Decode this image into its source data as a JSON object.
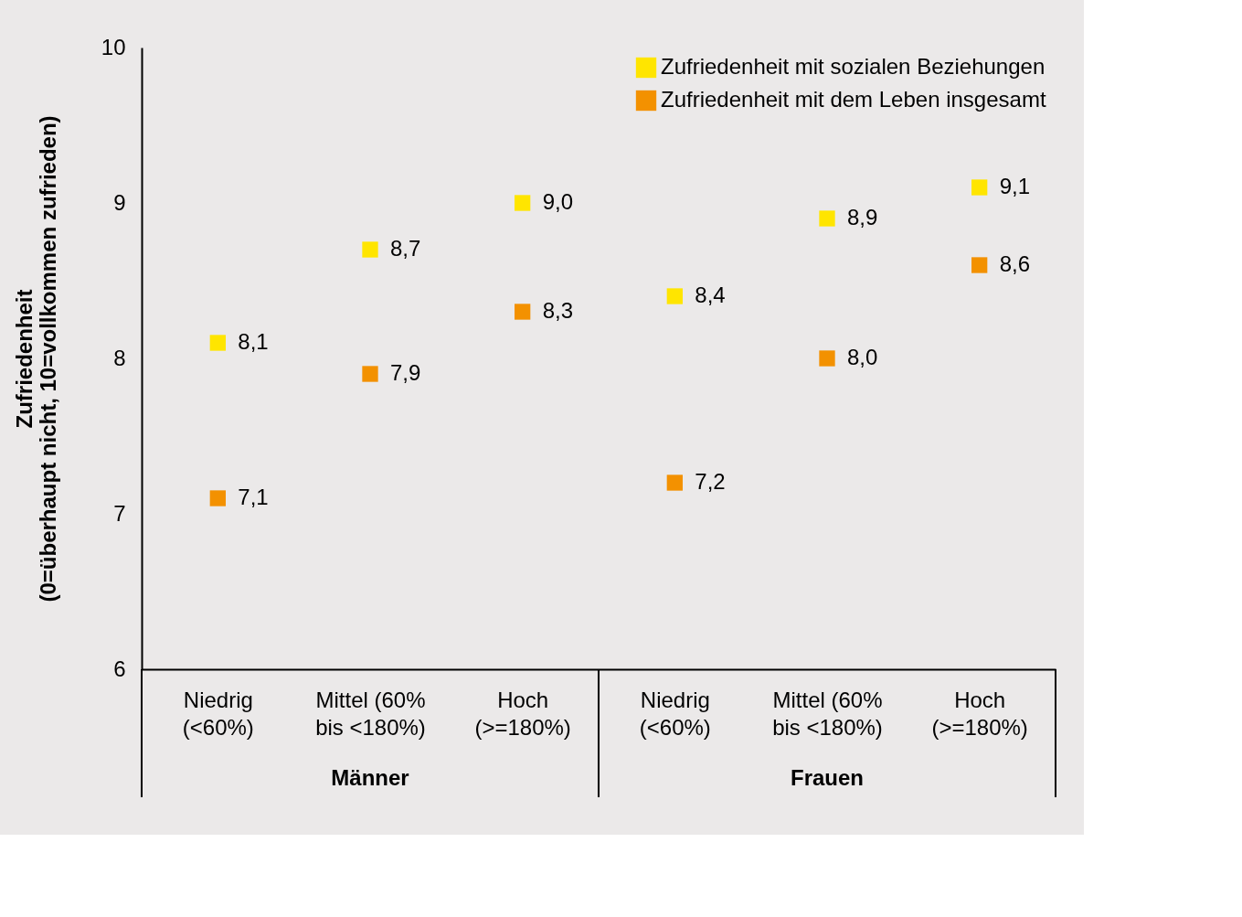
{
  "chart_data": {
    "type": "scatter",
    "ylabel": "Zufriedenheit\n(0=überhaupt nicht, 10=vollkommen zufrieden)",
    "categories": [
      "Niedrig\n(<60%)",
      "Mittel (60%\nbis  <180%)",
      "Hoch\n(>=180%)",
      "Niedrig\n(<60%)",
      "Mittel (60%\nbis  <180%)",
      "Hoch\n(>=180%)"
    ],
    "series": [
      {
        "name": "Zufriedenheit mit sozialen Beziehungen",
        "color": "#ffe500",
        "values": [
          8.1,
          8.7,
          9.0,
          8.4,
          8.9,
          9.1
        ],
        "value_labels": [
          "8,1",
          "8,7",
          "9,0",
          "8,4",
          "8,9",
          "9,1"
        ]
      },
      {
        "name": "Zufriedenheit mit dem Leben insgesamt",
        "color": "#f39100",
        "values": [
          7.1,
          7.9,
          8.3,
          7.2,
          8.0,
          8.6
        ],
        "value_labels": [
          "7,1",
          "7,9",
          "8,3",
          "7,2",
          "8,0",
          "8,6"
        ]
      }
    ],
    "annotations": [
      "Männer",
      "Frauen"
    ],
    "ylim": [
      6,
      10
    ],
    "yticks": [
      6,
      7,
      8,
      9,
      10
    ],
    "marker": "square",
    "legend": "top right",
    "grid": false
  }
}
